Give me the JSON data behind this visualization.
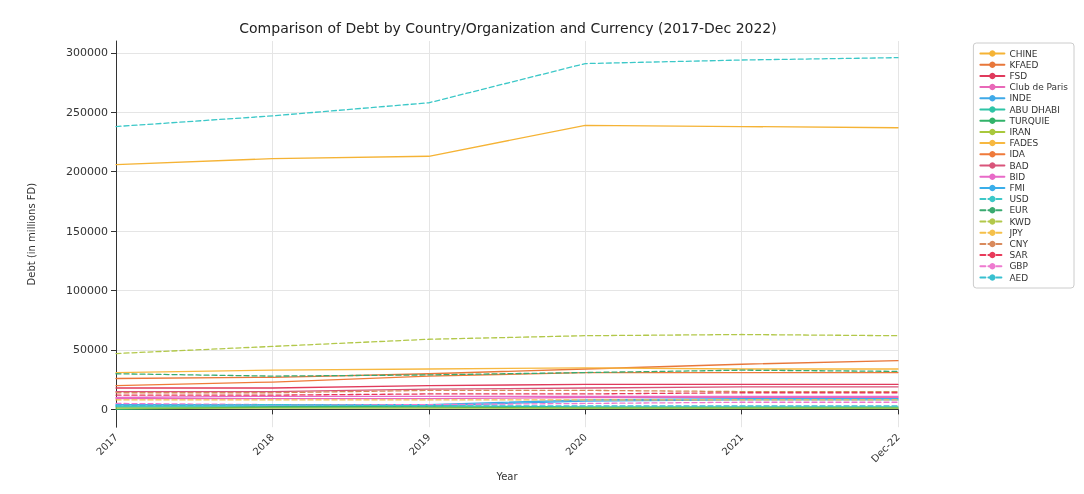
{
  "chart_data": {
    "type": "line",
    "title": "Comparison of Debt by Country/Organization and Currency (2017-Dec 2022)",
    "xlabel": "Year",
    "ylabel": "Debt (in millions FD)",
    "categories": [
      "2017",
      "2018",
      "2019",
      "2020",
      "2021",
      "Dec-22"
    ],
    "ylim": [
      -15000,
      310000
    ],
    "yticks": [
      0,
      50000,
      100000,
      150000,
      200000,
      250000,
      300000
    ],
    "grid": true,
    "legend": "right",
    "marker": "none",
    "series": [
      {
        "name": "CHINE",
        "color": "#f5b335",
        "line_style": "solid",
        "values": [
          206000,
          211000,
          213000,
          239000,
          238000,
          237000
        ]
      },
      {
        "name": "KFAED",
        "color": "#e8773a",
        "line_style": "solid",
        "values": [
          26000,
          27000,
          30000,
          34000,
          38000,
          41000
        ]
      },
      {
        "name": "FSD",
        "color": "#e03a5c",
        "line_style": "solid",
        "values": [
          18000,
          18000,
          20000,
          21000,
          21000,
          21000
        ]
      },
      {
        "name": "Club de Paris",
        "color": "#e868b8",
        "line_style": "solid",
        "values": [
          9000,
          9000,
          9000,
          10000,
          10000,
          10000
        ]
      },
      {
        "name": "INDE",
        "color": "#3fa9e8",
        "line_style": "solid",
        "values": [
          3000,
          3000,
          3000,
          7000,
          8000,
          8000
        ]
      },
      {
        "name": "ABU DHABI",
        "color": "#2ec4a6",
        "line_style": "solid",
        "values": [
          2000,
          2000,
          3000,
          2000,
          2000,
          2000
        ]
      },
      {
        "name": "TURQUIE",
        "color": "#32b36a",
        "line_style": "solid",
        "values": [
          0,
          2000,
          2000,
          1000,
          1000,
          1000
        ]
      },
      {
        "name": "IRAN",
        "color": "#a8c83c",
        "line_style": "solid",
        "values": [
          1000,
          1000,
          1000,
          1000,
          1000,
          1000
        ]
      },
      {
        "name": "FADES",
        "color": "#f7b840",
        "line_style": "solid",
        "values": [
          31000,
          33000,
          34000,
          35000,
          34000,
          34000
        ]
      },
      {
        "name": "IDA",
        "color": "#ef7a3a",
        "line_style": "solid",
        "values": [
          20000,
          23000,
          28000,
          31000,
          31000,
          31000
        ]
      },
      {
        "name": "BAD",
        "color": "#d9547a",
        "line_style": "solid",
        "values": [
          15000,
          15000,
          17000,
          18000,
          19000,
          19000
        ]
      },
      {
        "name": "BID",
        "color": "#e86ac8",
        "line_style": "solid",
        "values": [
          10000,
          11000,
          11000,
          11000,
          11000,
          11000
        ]
      },
      {
        "name": "FMI",
        "color": "#3aaeea",
        "line_style": "solid",
        "values": [
          4000,
          4000,
          4000,
          8000,
          9000,
          9000
        ]
      },
      {
        "name": "USD",
        "color": "#3cc8c8",
        "line_style": "dashed",
        "values": [
          238000,
          247000,
          258000,
          291000,
          294000,
          296000
        ]
      },
      {
        "name": "EUR",
        "color": "#3aaa70",
        "line_style": "dashed",
        "values": [
          30000,
          28000,
          29000,
          31000,
          33000,
          32000
        ]
      },
      {
        "name": "KWD",
        "color": "#b2c84a",
        "line_style": "dashed",
        "values": [
          47000,
          53000,
          59000,
          62000,
          63000,
          62000
        ]
      },
      {
        "name": "JPY",
        "color": "#f5c04a",
        "line_style": "dashed",
        "values": [
          8000,
          8000,
          8000,
          8000,
          8000,
          8000
        ]
      },
      {
        "name": "CNY",
        "color": "#d98a5c",
        "line_style": "dashed",
        "values": [
          14000,
          14000,
          16000,
          16000,
          15000,
          15000
        ]
      },
      {
        "name": "SAR",
        "color": "#e83a5a",
        "line_style": "dashed",
        "values": [
          12000,
          12000,
          13000,
          13000,
          14000,
          14000
        ]
      },
      {
        "name": "GBP",
        "color": "#ee7ad0",
        "line_style": "dashed",
        "values": [
          5000,
          4000,
          4000,
          5000,
          6000,
          6000
        ]
      },
      {
        "name": "AED",
        "color": "#38c0d0",
        "line_style": "dashed",
        "values": [
          3000,
          4000,
          3000,
          3000,
          3000,
          3000
        ]
      }
    ]
  }
}
